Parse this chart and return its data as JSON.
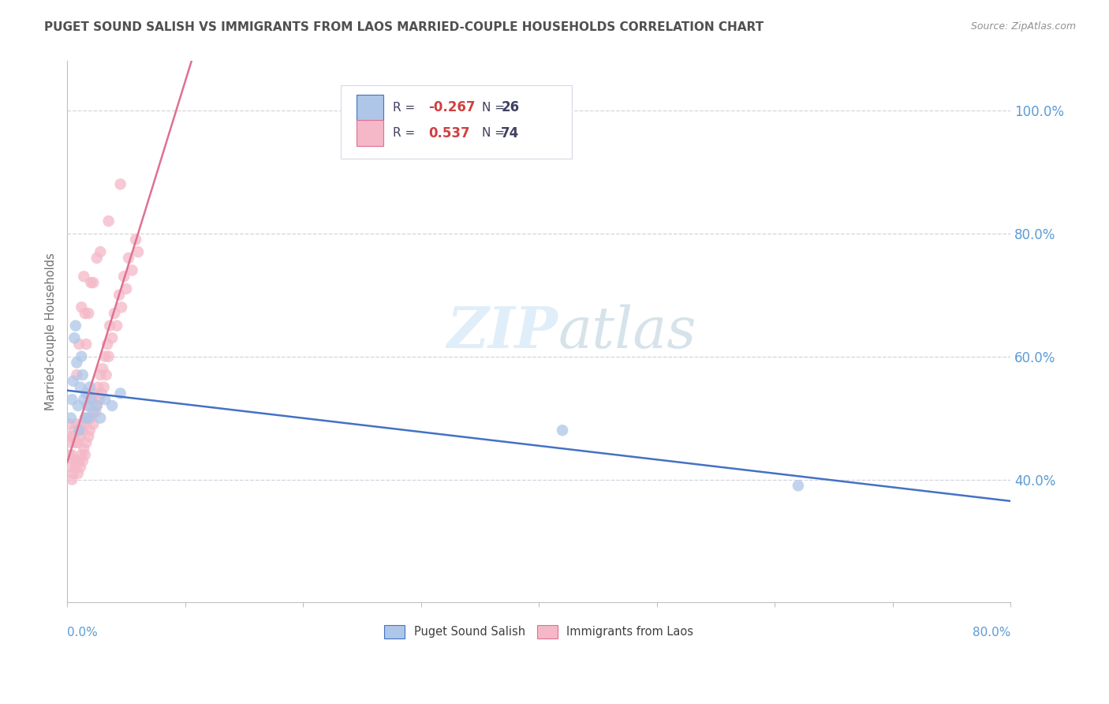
{
  "title": "PUGET SOUND SALISH VS IMMIGRANTS FROM LAOS MARRIED-COUPLE HOUSEHOLDS CORRELATION CHART",
  "source": "Source: ZipAtlas.com",
  "ylabel": "Married-couple Households",
  "watermark_zip": "ZIP",
  "watermark_atlas": "atlas",
  "series": [
    {
      "name": "Puget Sound Salish",
      "R": -0.267,
      "N": 26,
      "marker_color": "#aec6e8",
      "line_color": "#4472c4",
      "x": [
        0.003,
        0.004,
        0.005,
        0.006,
        0.007,
        0.008,
        0.009,
        0.01,
        0.011,
        0.012,
        0.013,
        0.014,
        0.015,
        0.016,
        0.017,
        0.018,
        0.019,
        0.02,
        0.022,
        0.025,
        0.028,
        0.032,
        0.038,
        0.045,
        0.42,
        0.62
      ],
      "y": [
        0.5,
        0.53,
        0.56,
        0.63,
        0.65,
        0.59,
        0.52,
        0.48,
        0.55,
        0.6,
        0.57,
        0.53,
        0.5,
        0.54,
        0.52,
        0.5,
        0.55,
        0.53,
        0.51,
        0.52,
        0.5,
        0.53,
        0.52,
        0.54,
        0.48,
        0.39
      ]
    },
    {
      "name": "Immigrants from Laos",
      "R": 0.537,
      "N": 74,
      "marker_color": "#f4b8c8",
      "line_color": "#e07090",
      "x": [
        0.001,
        0.002,
        0.002,
        0.003,
        0.003,
        0.004,
        0.004,
        0.005,
        0.005,
        0.006,
        0.006,
        0.007,
        0.007,
        0.008,
        0.008,
        0.009,
        0.009,
        0.01,
        0.01,
        0.011,
        0.011,
        0.012,
        0.012,
        0.013,
        0.013,
        0.014,
        0.015,
        0.015,
        0.016,
        0.017,
        0.018,
        0.018,
        0.019,
        0.02,
        0.021,
        0.022,
        0.023,
        0.024,
        0.025,
        0.026,
        0.027,
        0.028,
        0.029,
        0.03,
        0.031,
        0.032,
        0.033,
        0.034,
        0.035,
        0.036,
        0.038,
        0.04,
        0.042,
        0.044,
        0.046,
        0.048,
        0.05,
        0.052,
        0.055,
        0.058,
        0.06,
        0.015,
        0.02,
        0.025,
        0.008,
        0.01,
        0.012,
        0.014,
        0.016,
        0.018,
        0.022,
        0.028,
        0.035,
        0.045
      ],
      "y": [
        0.47,
        0.44,
        0.49,
        0.42,
        0.46,
        0.4,
        0.44,
        0.41,
        0.47,
        0.43,
        0.48,
        0.42,
        0.46,
        0.43,
        0.49,
        0.41,
        0.46,
        0.43,
        0.48,
        0.42,
        0.47,
        0.44,
        0.49,
        0.43,
        0.48,
        0.45,
        0.44,
        0.49,
        0.46,
        0.5,
        0.47,
        0.52,
        0.48,
        0.5,
        0.53,
        0.49,
        0.54,
        0.51,
        0.52,
        0.55,
        0.53,
        0.57,
        0.54,
        0.58,
        0.55,
        0.6,
        0.57,
        0.62,
        0.6,
        0.65,
        0.63,
        0.67,
        0.65,
        0.7,
        0.68,
        0.73,
        0.71,
        0.76,
        0.74,
        0.79,
        0.77,
        0.67,
        0.72,
        0.76,
        0.57,
        0.62,
        0.68,
        0.73,
        0.62,
        0.67,
        0.72,
        0.77,
        0.82,
        0.88
      ]
    }
  ],
  "xlim": [
    0.0,
    0.8
  ],
  "ylim": [
    0.2,
    1.08
  ],
  "ytick_vals": [
    0.4,
    0.6,
    0.8,
    1.0
  ],
  "ytick_labels": [
    "40.0%",
    "60.0%",
    "80.0%",
    "100.0%"
  ],
  "bg_color": "#ffffff",
  "grid_color": "#c8c8d8",
  "title_color": "#505050",
  "axis_tick_color": "#5b9bd5",
  "source_color": "#909090"
}
